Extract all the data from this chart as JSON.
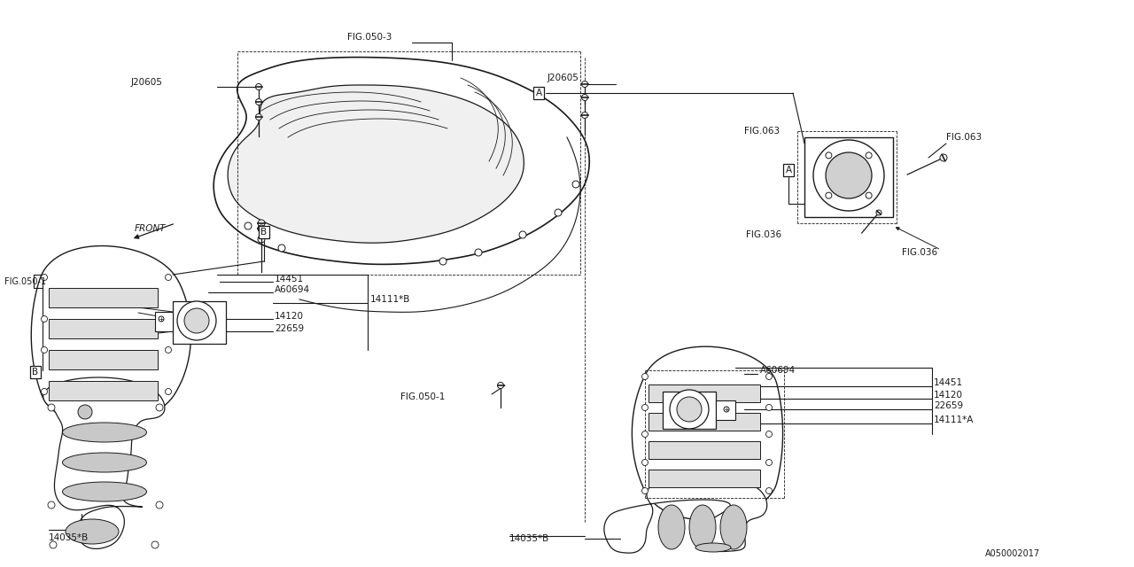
{
  "bg_color": "#ffffff",
  "lc": "#1a1a1a",
  "fs": 7.5,
  "labels": {
    "FIG050_3": "FIG.050-3",
    "J20605_L": "J20605",
    "J20605_R": "J20605",
    "FIG050_1_L": "FIG.050-1",
    "FIG050_1_R": "FIG.050-1",
    "FIG036_tl": "FIG.036",
    "FIG036_br": "FIG.036",
    "FIG063_tl": "FIG.063",
    "FIG063_tr": "FIG.063",
    "n14451_L": "14451",
    "A60694_L": "A60694",
    "n14111B": "14111*B",
    "n14120_L": "14120",
    "n22659_L": "22659",
    "n14035B_L": "14035*B",
    "A60694_R": "A60694",
    "n14451_R": "14451",
    "n14120_R": "14120",
    "n22659_R": "22659",
    "n14111A": "14111*A",
    "n14035B_R": "14035*B",
    "FRONT": "FRONT",
    "ref": "A050002017",
    "A": "A",
    "B": "B"
  }
}
